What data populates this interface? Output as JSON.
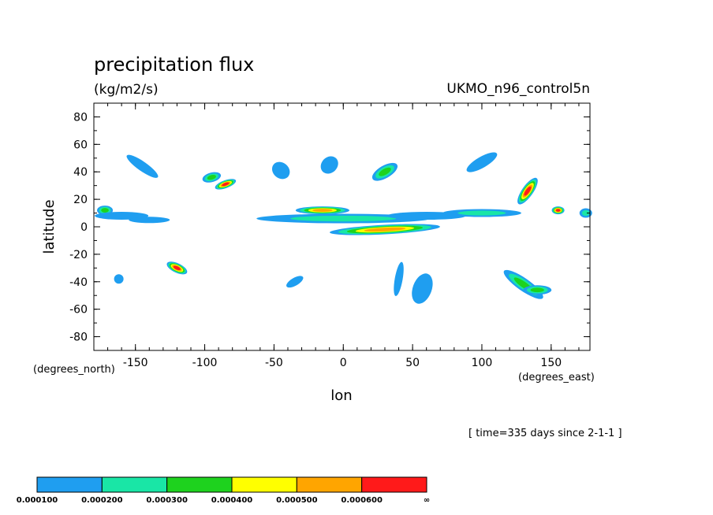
{
  "chart_data": {
    "type": "heatmap",
    "title": "precipitation flux",
    "units": "(kg/m2/s)",
    "dataset": "UKMO_n96_control5n",
    "time_label": "[ time=335 days since 2-1-1 ]",
    "xlabel": "lon",
    "ylabel": "latitude",
    "x_unit_label": "(degrees_east)",
    "y_unit_label": "(degrees_north)",
    "xlim": [
      -180,
      178
    ],
    "ylim": [
      -90,
      90
    ],
    "x_ticks": [
      -150,
      -100,
      -50,
      0,
      50,
      100,
      150
    ],
    "y_ticks": [
      80,
      60,
      40,
      20,
      0,
      -20,
      -40,
      -60,
      -80
    ],
    "colorbar": {
      "colors": [
        "#1f9ef0",
        "#19e6a6",
        "#1ed21e",
        "#ffff00",
        "#ffa500",
        "#ff1a1a"
      ],
      "labels": [
        "0.000100",
        "0.000200",
        "0.000300",
        "0.000400",
        "0.000500",
        "0.000600",
        "∞"
      ]
    },
    "features": [
      {
        "lon": -172,
        "lat": 12,
        "level": 3
      },
      {
        "lon": -160,
        "lat": 8,
        "level": 1
      },
      {
        "lon": -140,
        "lat": 5,
        "level": 1
      },
      {
        "lon": -95,
        "lat": 36,
        "level": 3
      },
      {
        "lon": -85,
        "lat": 31,
        "level": 6
      },
      {
        "lon": -145,
        "lat": 44,
        "level": 1
      },
      {
        "lon": -45,
        "lat": 41,
        "level": 1
      },
      {
        "lon": -10,
        "lat": 45,
        "level": 1
      },
      {
        "lon": -15,
        "lat": 12,
        "level": 5
      },
      {
        "lon": 30,
        "lat": 40,
        "level": 3
      },
      {
        "lon": 30,
        "lat": -2,
        "level": 5
      },
      {
        "lon": 0,
        "lat": 6,
        "level": 2
      },
      {
        "lon": 60,
        "lat": 8,
        "level": 1
      },
      {
        "lon": 100,
        "lat": 10,
        "level": 2
      },
      {
        "lon": 100,
        "lat": 47,
        "level": 1
      },
      {
        "lon": 133,
        "lat": 26,
        "level": 6
      },
      {
        "lon": 155,
        "lat": 12,
        "level": 6
      },
      {
        "lon": 175,
        "lat": 10,
        "level": 2
      },
      {
        "lon": -120,
        "lat": -30,
        "level": 6
      },
      {
        "lon": -162,
        "lat": -38,
        "level": 1
      },
      {
        "lon": -35,
        "lat": -40,
        "level": 1
      },
      {
        "lon": 40,
        "lat": -38,
        "level": 1
      },
      {
        "lon": 57,
        "lat": -45,
        "level": 1
      },
      {
        "lon": 130,
        "lat": -42,
        "level": 3
      },
      {
        "lon": 140,
        "lat": -46,
        "level": 3
      }
    ]
  }
}
